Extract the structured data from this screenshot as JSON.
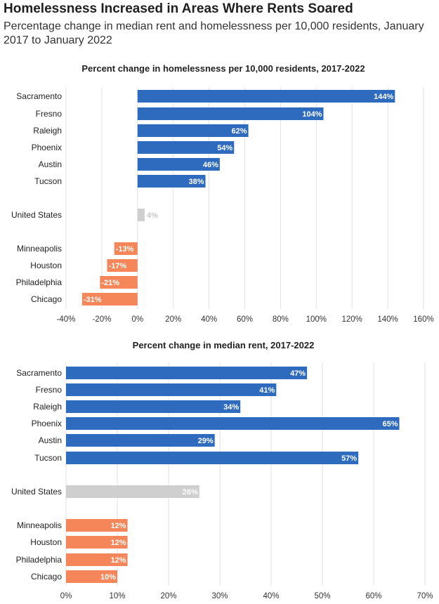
{
  "header": {
    "title": "Homelessness Increased in Areas Where Rents Soared",
    "subtitle": "Percentage change in median rent and homelessness per 10,000 residents, January 2017 to January 2022"
  },
  "colors": {
    "increase": "#2e6bbf",
    "us": "#cfcfcf",
    "decrease": "#f5865a"
  },
  "chart_data": [
    {
      "type": "bar",
      "orientation": "horizontal",
      "title": "Percent change in homelessness per 10,000 residents, 2017-2022",
      "categories": [
        "Sacramento",
        "Fresno",
        "Raleigh",
        "Phoenix",
        "Austin",
        "Tucson",
        "United States",
        "Minneapolis",
        "Houston",
        "Philadelphia",
        "Chicago"
      ],
      "values": [
        144,
        104,
        62,
        54,
        46,
        38,
        4,
        -13,
        -17,
        -21,
        -31
      ],
      "value_labels": [
        "144%",
        "104%",
        "62%",
        "54%",
        "46%",
        "38%",
        "4%",
        "-13%",
        "-17%",
        "-21%",
        "-31%"
      ],
      "groups": [
        "increase",
        "increase",
        "increase",
        "increase",
        "increase",
        "increase",
        "us",
        "decrease",
        "decrease",
        "decrease",
        "decrease"
      ],
      "xlim": [
        -40,
        160
      ],
      "ticks": [
        -40,
        -20,
        0,
        20,
        40,
        60,
        80,
        100,
        120,
        140,
        160
      ],
      "tick_labels": [
        "-40%",
        "-20%",
        "0%",
        "20%",
        "40%",
        "60%",
        "80%",
        "100%",
        "120%",
        "140%",
        "160%"
      ],
      "grid": true
    },
    {
      "type": "bar",
      "orientation": "horizontal",
      "title": "Percent change in median rent, 2017-2022",
      "categories": [
        "Sacramento",
        "Fresno",
        "Raleigh",
        "Phoenix",
        "Austin",
        "Tucson",
        "United States",
        "Minneapolis",
        "Houston",
        "Philadelphia",
        "Chicago"
      ],
      "values": [
        47,
        41,
        34,
        65,
        29,
        57,
        26,
        12,
        12,
        12,
        10
      ],
      "value_labels": [
        "47%",
        "41%",
        "34%",
        "65%",
        "29%",
        "57%",
        "26%",
        "12%",
        "12%",
        "12%",
        "10%"
      ],
      "groups": [
        "increase",
        "increase",
        "increase",
        "increase",
        "increase",
        "increase",
        "us",
        "decrease",
        "decrease",
        "decrease",
        "decrease"
      ],
      "xlim": [
        0,
        70
      ],
      "ticks": [
        0,
        10,
        20,
        30,
        40,
        50,
        60,
        70
      ],
      "tick_labels": [
        "0%",
        "10%",
        "20%",
        "30%",
        "40%",
        "50%",
        "60%",
        "70%"
      ],
      "grid": true
    }
  ]
}
